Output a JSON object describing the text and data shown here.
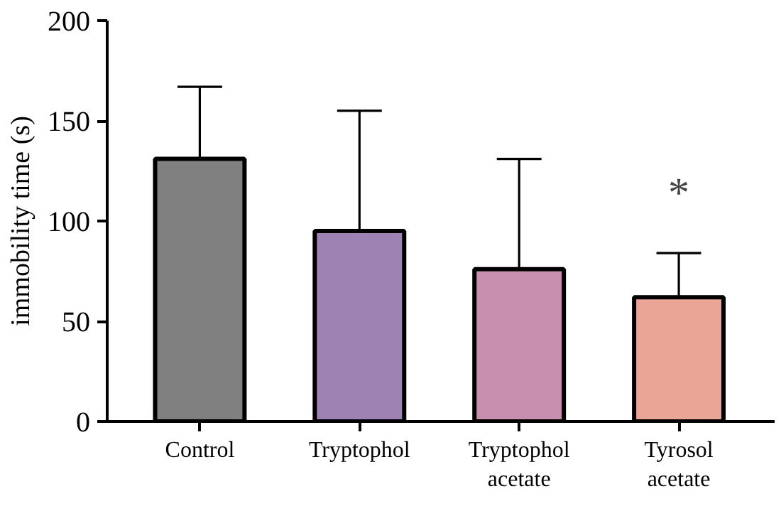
{
  "chart_data": {
    "type": "bar",
    "ylabel": "immobility time (s)",
    "categories": [
      "Control",
      "Tryptophol",
      "Tryptophol\nacetate",
      "Tyrosol\nacetate"
    ],
    "values": [
      131,
      95,
      76,
      62
    ],
    "colors": [
      "#808080",
      "#9e82b4",
      "#c98faf",
      "#eba597"
    ],
    "errors": [
      [
        131,
        167
      ],
      [
        95,
        155
      ],
      [
        76,
        131
      ],
      [
        62,
        84
      ]
    ],
    "ylim": [
      0,
      200
    ],
    "yticks": [
      0,
      50,
      100,
      150,
      200
    ],
    "grid": false,
    "annotations": [
      "*"
    ]
  }
}
